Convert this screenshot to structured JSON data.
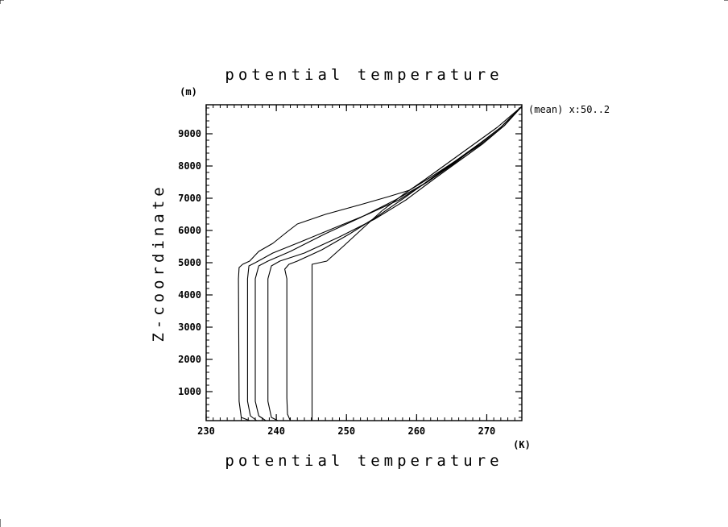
{
  "chart_data": {
    "type": "line",
    "title": "potential temperature",
    "xlabel": "potential temperature",
    "ylabel": "Z-coordinate",
    "xunit": "(K)",
    "yunit": "(m)",
    "annotation": "(mean) x:50..2",
    "xlim": [
      230,
      275
    ],
    "ylim": [
      100,
      9900
    ],
    "xticks": [
      230,
      240,
      250,
      260,
      270
    ],
    "yticks": [
      1000,
      2000,
      3000,
      4000,
      5000,
      6000,
      7000,
      8000,
      9000
    ],
    "grid": false,
    "line_color": "#000000",
    "series": [
      {
        "points": [
          [
            245.1,
            100
          ],
          [
            245.1,
            4950
          ],
          [
            247.2,
            5050
          ],
          [
            249.5,
            5500
          ],
          [
            252.0,
            6000
          ],
          [
            255.0,
            6600
          ],
          [
            258.0,
            7100
          ],
          [
            261.0,
            7550
          ],
          [
            264.5,
            8100
          ],
          [
            268.0,
            8650
          ],
          [
            271.5,
            9200
          ],
          [
            275.0,
            9850
          ]
        ]
      },
      {
        "points": [
          [
            242.0,
            100
          ],
          [
            241.6,
            300
          ],
          [
            241.5,
            800
          ],
          [
            241.5,
            4500
          ],
          [
            241.2,
            4800
          ],
          [
            241.8,
            4950
          ],
          [
            243.0,
            5050
          ],
          [
            246.5,
            5400
          ],
          [
            250.5,
            5900
          ],
          [
            254.5,
            6450
          ],
          [
            258.5,
            7050
          ],
          [
            262.0,
            7600
          ],
          [
            265.5,
            8150
          ],
          [
            269.0,
            8700
          ],
          [
            272.0,
            9200
          ],
          [
            275.0,
            9850
          ]
        ]
      },
      {
        "points": [
          [
            240.2,
            100
          ],
          [
            239.3,
            200
          ],
          [
            238.8,
            700
          ],
          [
            238.8,
            4500
          ],
          [
            239.3,
            4900
          ],
          [
            240.5,
            5050
          ],
          [
            244.0,
            5300
          ],
          [
            249.0,
            5800
          ],
          [
            254.0,
            6350
          ],
          [
            258.5,
            6950
          ],
          [
            262.5,
            7600
          ],
          [
            266.0,
            8150
          ],
          [
            269.5,
            8700
          ],
          [
            272.5,
            9250
          ],
          [
            275.0,
            9850
          ]
        ]
      },
      {
        "points": [
          [
            238.5,
            100
          ],
          [
            237.5,
            250
          ],
          [
            237.0,
            700
          ],
          [
            237.0,
            4500
          ],
          [
            237.5,
            4900
          ],
          [
            238.8,
            5050
          ],
          [
            242.0,
            5350
          ],
          [
            247.0,
            5900
          ],
          [
            252.0,
            6400
          ],
          [
            257.0,
            6950
          ],
          [
            261.5,
            7500
          ],
          [
            265.5,
            8100
          ],
          [
            269.0,
            8700
          ],
          [
            272.0,
            9200
          ],
          [
            275.0,
            9850
          ]
        ]
      },
      {
        "points": [
          [
            237.2,
            100
          ],
          [
            236.3,
            250
          ],
          [
            235.9,
            700
          ],
          [
            235.9,
            4500
          ],
          [
            236.1,
            4900
          ],
          [
            237.0,
            5000
          ],
          [
            239.5,
            5300
          ],
          [
            243.5,
            5650
          ],
          [
            248.5,
            6100
          ],
          [
            253.0,
            6500
          ],
          [
            257.5,
            6950
          ],
          [
            261.5,
            7500
          ],
          [
            265.0,
            8050
          ],
          [
            268.5,
            8600
          ],
          [
            272.0,
            9200
          ],
          [
            275.0,
            9850
          ]
        ]
      },
      {
        "points": [
          [
            236.2,
            100
          ],
          [
            235.0,
            200
          ],
          [
            234.7,
            700
          ],
          [
            234.6,
            4500
          ],
          [
            234.7,
            4850
          ],
          [
            235.2,
            4950
          ],
          [
            236.2,
            5050
          ],
          [
            237.5,
            5350
          ],
          [
            239.5,
            5600
          ],
          [
            241.5,
            5950
          ],
          [
            243.0,
            6200
          ],
          [
            247.0,
            6500
          ],
          [
            252.0,
            6800
          ],
          [
            256.0,
            7050
          ],
          [
            259.0,
            7250
          ],
          [
            262.0,
            7650
          ],
          [
            265.5,
            8150
          ],
          [
            269.0,
            8650
          ],
          [
            272.5,
            9250
          ],
          [
            275.0,
            9850
          ]
        ]
      }
    ]
  }
}
